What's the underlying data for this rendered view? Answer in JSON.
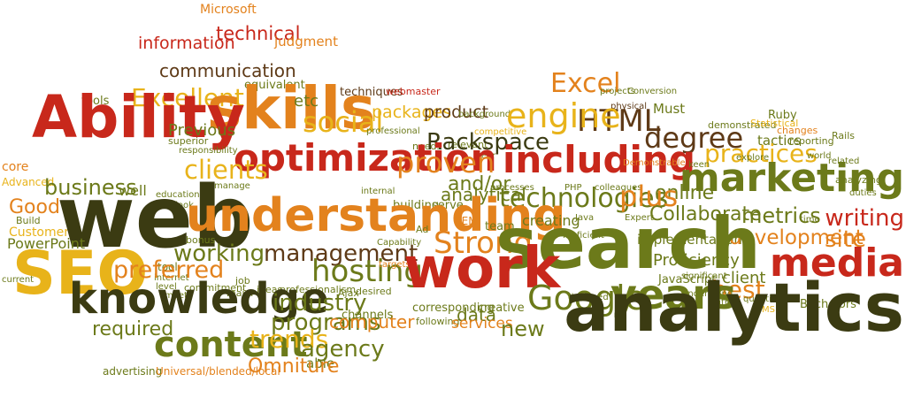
{
  "colors": {
    "red": "#c8281b",
    "orange": "#e3821d",
    "yellow": "#e8b31a",
    "olive": "#6c7a1a",
    "brown": "#5e3a17",
    "dark": "#3b3b12"
  },
  "words": [
    {
      "text": "Microsoft",
      "color": "orange"
    },
    {
      "text": "technical",
      "color": "red"
    },
    {
      "text": "information",
      "color": "red"
    },
    {
      "text": "judgment",
      "color": "orange"
    },
    {
      "text": "communication",
      "color": "brown"
    },
    {
      "text": "equivalent",
      "color": "olive"
    },
    {
      "text": "tools",
      "color": "olive"
    },
    {
      "text": "Excellent",
      "color": "yellow"
    },
    {
      "text": "skills",
      "color": "orange"
    },
    {
      "text": "etc",
      "color": "olive"
    },
    {
      "text": "techniques",
      "color": "brown"
    },
    {
      "text": "webmaster",
      "color": "red"
    },
    {
      "text": "Excel",
      "color": "orange"
    },
    {
      "text": "projects",
      "color": "olive"
    },
    {
      "text": "Conversion",
      "color": "olive"
    },
    {
      "text": "packages",
      "color": "yellow"
    },
    {
      "text": "product",
      "color": "brown"
    },
    {
      "text": "physical",
      "color": "brown"
    },
    {
      "text": "Must",
      "color": "olive"
    },
    {
      "text": "Ruby",
      "color": "olive"
    },
    {
      "text": "social",
      "color": "yellow"
    },
    {
      "text": "background",
      "color": "olive"
    },
    {
      "text": "HTML",
      "color": "brown"
    },
    {
      "text": "engine",
      "color": "yellow"
    },
    {
      "text": "demonstrated",
      "color": "olive"
    },
    {
      "text": "Statistical",
      "color": "yellow"
    },
    {
      "text": "changes",
      "color": "orange"
    },
    {
      "text": "Ability",
      "color": "red"
    },
    {
      "text": "Previous",
      "color": "olive"
    },
    {
      "text": "professional",
      "color": "olive"
    },
    {
      "text": "competitive",
      "color": "yellow"
    },
    {
      "text": "degree",
      "color": "brown"
    },
    {
      "text": "tactics",
      "color": "olive"
    },
    {
      "text": "reporting",
      "color": "olive"
    },
    {
      "text": "Rails",
      "color": "olive"
    },
    {
      "text": "superior",
      "color": "olive"
    },
    {
      "text": "responsibility",
      "color": "olive"
    },
    {
      "text": "needs",
      "color": "olive"
    },
    {
      "text": "relevant",
      "color": "olive"
    },
    {
      "text": "year",
      "color": "olive"
    },
    {
      "text": "Rackspace",
      "color": "dark"
    },
    {
      "text": "practices",
      "color": "yellow"
    },
    {
      "text": "world",
      "color": "olive"
    },
    {
      "text": "related",
      "color": "olive"
    },
    {
      "text": "core",
      "color": "orange"
    },
    {
      "text": "optimization",
      "color": "red"
    },
    {
      "text": "proven",
      "color": "orange"
    },
    {
      "text": "including",
      "color": "red"
    },
    {
      "text": "Demonstrable",
      "color": "orange"
    },
    {
      "text": "keen",
      "color": "olive"
    },
    {
      "text": "explore",
      "color": "olive"
    },
    {
      "text": "Advanced",
      "color": "yellow"
    },
    {
      "text": "clients",
      "color": "yellow"
    },
    {
      "text": "marketing",
      "color": "olive"
    },
    {
      "text": "analyzing",
      "color": "olive"
    },
    {
      "text": "duties",
      "color": "olive"
    },
    {
      "text": "business",
      "color": "olive"
    },
    {
      "text": "well",
      "color": "olive"
    },
    {
      "text": "manage",
      "color": "olive"
    },
    {
      "text": "internal",
      "color": "olive"
    },
    {
      "text": "and/or",
      "color": "olive"
    },
    {
      "text": "processes",
      "color": "olive"
    },
    {
      "text": "PHP",
      "color": "olive"
    },
    {
      "text": "colleagues",
      "color": "olive"
    },
    {
      "text": "online",
      "color": "olive"
    },
    {
      "text": "education",
      "color": "olive"
    },
    {
      "text": "Outlook",
      "color": "olive"
    },
    {
      "text": "building",
      "color": "olive"
    },
    {
      "text": "serve",
      "color": "olive"
    },
    {
      "text": "analytical",
      "color": "olive"
    },
    {
      "text": "technologies",
      "color": "olive"
    },
    {
      "text": "plus",
      "color": "orange"
    },
    {
      "text": "Collaborate",
      "color": "olive"
    },
    {
      "text": "metrics",
      "color": "olive"
    },
    {
      "text": "Good",
      "color": "orange"
    },
    {
      "text": "Build",
      "color": "olive"
    },
    {
      "text": "Customers",
      "color": "yellow"
    },
    {
      "text": "web",
      "color": "dark"
    },
    {
      "text": "understanding",
      "color": "orange"
    },
    {
      "text": "SEM",
      "color": "orange"
    },
    {
      "text": "team",
      "color": "olive"
    },
    {
      "text": "creating",
      "color": "olive"
    },
    {
      "text": "Java",
      "color": "olive"
    },
    {
      "text": "Expert",
      "color": "olive"
    },
    {
      "text": "time",
      "color": "olive"
    },
    {
      "text": "writing",
      "color": "red"
    },
    {
      "text": "PowerPoint",
      "color": "olive"
    },
    {
      "text": "bonus",
      "color": "olive"
    },
    {
      "text": "Ad",
      "color": "olive"
    },
    {
      "text": "Strong",
      "color": "orange"
    },
    {
      "text": "Proficient",
      "color": "olive"
    },
    {
      "text": "implementation",
      "color": "olive"
    },
    {
      "text": "development",
      "color": "orange"
    },
    {
      "text": "site",
      "color": "orange"
    },
    {
      "text": "SEO",
      "color": "yellow"
    },
    {
      "text": "working",
      "color": "olive"
    },
    {
      "text": "management",
      "color": "brown"
    },
    {
      "text": "Capability",
      "color": "olive"
    },
    {
      "text": "search",
      "color": "olive"
    },
    {
      "text": "Proficiency",
      "color": "olive"
    },
    {
      "text": "JavaScript",
      "color": "olive"
    },
    {
      "text": "client",
      "color": "olive"
    },
    {
      "text": "media",
      "color": "red"
    },
    {
      "text": "tool",
      "color": "olive"
    },
    {
      "text": "internet",
      "color": "olive"
    },
    {
      "text": "preferred",
      "color": "orange"
    },
    {
      "text": "hosting",
      "color": "olive"
    },
    {
      "text": "targets",
      "color": "orange"
    },
    {
      "text": "work",
      "color": "red"
    },
    {
      "text": "best",
      "color": "orange"
    },
    {
      "text": "significant",
      "color": "olive"
    },
    {
      "text": "current",
      "color": "olive"
    },
    {
      "text": "level",
      "color": "olive"
    },
    {
      "text": "commitment",
      "color": "olive"
    },
    {
      "text": "job",
      "color": "olive"
    },
    {
      "text": "major",
      "color": "olive"
    },
    {
      "text": "ideas",
      "color": "olive"
    },
    {
      "text": "professionalism",
      "color": "olive"
    },
    {
      "text": "Ajax",
      "color": "olive"
    },
    {
      "text": "desired",
      "color": "olive"
    },
    {
      "text": "designed",
      "color": "olive"
    },
    {
      "text": "Understand",
      "color": "olive"
    },
    {
      "text": "quantitative",
      "color": "olive"
    },
    {
      "text": "Bachelors",
      "color": "olive"
    },
    {
      "text": "within",
      "color": "olive"
    },
    {
      "text": "CMS",
      "color": "yellow"
    },
    {
      "text": "meet",
      "color": "olive"
    },
    {
      "text": "knowledge",
      "color": "dark"
    },
    {
      "text": "industry",
      "color": "olive"
    },
    {
      "text": "Google",
      "color": "olive"
    },
    {
      "text": "years",
      "color": "olive"
    },
    {
      "text": "analytics",
      "color": "dark"
    },
    {
      "text": "programs",
      "color": "olive"
    },
    {
      "text": "computer",
      "color": "orange"
    },
    {
      "text": "channels",
      "color": "olive"
    },
    {
      "text": "corresponding",
      "color": "olive"
    },
    {
      "text": "creative",
      "color": "olive"
    },
    {
      "text": "data",
      "color": "olive"
    },
    {
      "text": "following",
      "color": "olive"
    },
    {
      "text": "services",
      "color": "orange"
    },
    {
      "text": "new",
      "color": "olive"
    },
    {
      "text": "required",
      "color": "olive"
    },
    {
      "text": "content",
      "color": "olive"
    },
    {
      "text": "trends",
      "color": "yellow"
    },
    {
      "text": "agency",
      "color": "olive"
    },
    {
      "text": "able",
      "color": "olive"
    },
    {
      "text": "advertising",
      "color": "olive"
    },
    {
      "text": "Universal/blended/local",
      "color": "orange"
    },
    {
      "text": "Omniture",
      "color": "orange"
    }
  ]
}
